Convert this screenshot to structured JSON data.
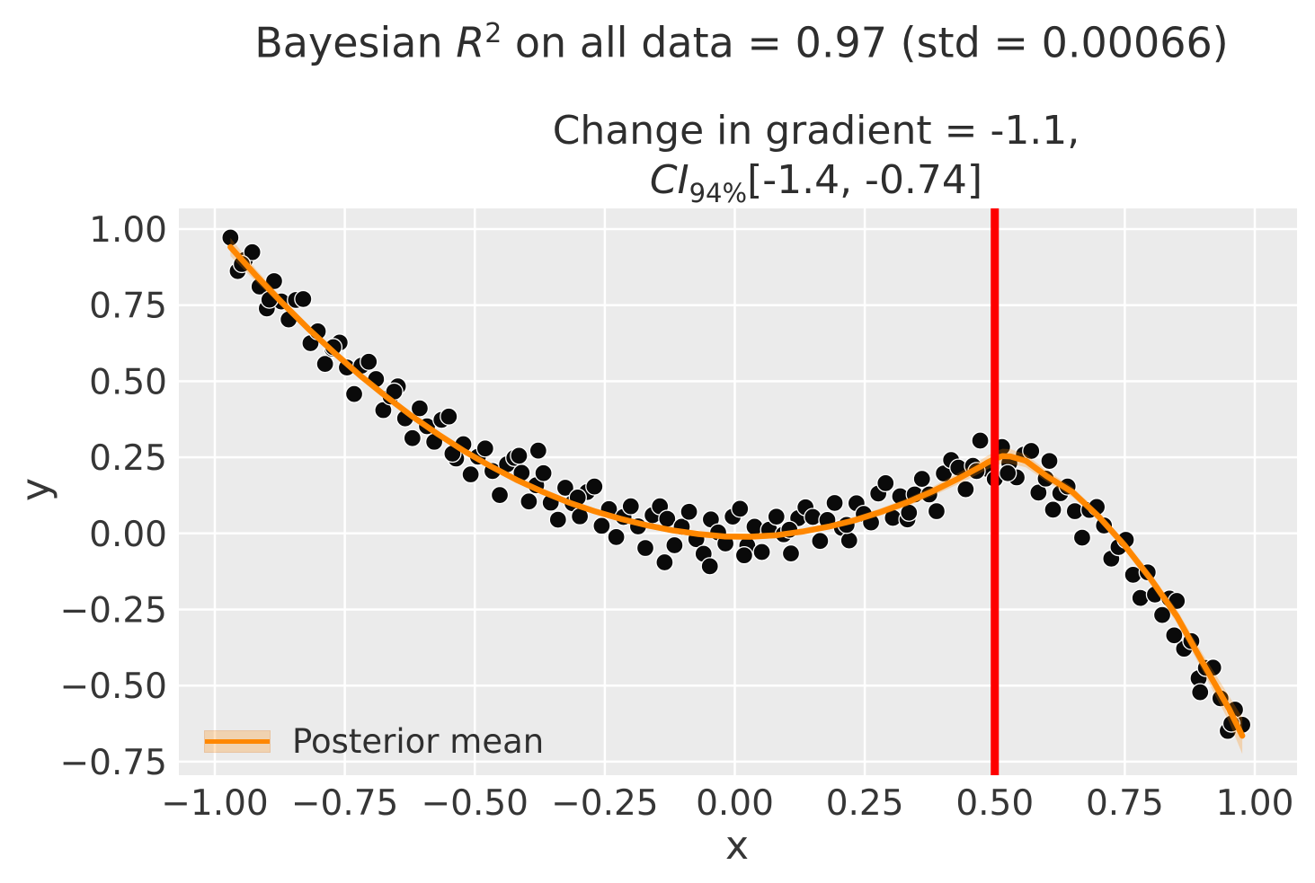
{
  "figure": {
    "title": {
      "prefix": "Bayesian ",
      "var": "R",
      "sup": "2",
      "suffix": " on all data = 0.97 (std = 0.00066)"
    },
    "subtitle": {
      "line1": "Change in gradient = -1.1,",
      "ci_var": "CI",
      "ci_sub": "94%",
      "ci_rest": "[-1.4, -0.74]"
    }
  },
  "chart_data": {
    "type": "scatter",
    "title": "Bayesian R^2 on all data = 0.97 (std = 0.00066)",
    "subtitle": "Change in gradient = -1.1, CI_94% [-1.4, -0.74]",
    "xlabel": "x",
    "ylabel": "y",
    "xlim": [
      -1.069,
      1.081
    ],
    "ylim": [
      -0.794,
      1.068
    ],
    "grid": true,
    "background": "#ebebeb",
    "gridcolor": "#ffffff",
    "xticks": {
      "values": [
        -1.0,
        -0.75,
        -0.5,
        -0.25,
        0.0,
        0.25,
        0.5,
        0.75,
        1.0
      ],
      "labels": [
        "−1.00",
        "−0.75",
        "−0.50",
        "−0.25",
        "0.00",
        "0.25",
        "0.50",
        "0.75",
        "1.00"
      ]
    },
    "yticks": {
      "values": [
        1.0,
        0.75,
        0.5,
        0.25,
        0.0,
        -0.25,
        -0.5,
        -0.75
      ],
      "labels": [
        "1.00",
        "0.75",
        "0.50",
        "0.25",
        "0.00",
        "−0.25",
        "−0.50",
        "−0.75"
      ]
    },
    "changepoint": {
      "x": 0.5,
      "color": "#fe0000"
    },
    "legend": [
      {
        "label": "Posterior mean",
        "line_color": "#ff8700",
        "band_alpha": 0.25
      }
    ],
    "scatter": {
      "color": "#0a0a0a",
      "edge": "#ffffff",
      "points": [
        [
          -0.97,
          0.972
        ],
        [
          -0.956,
          0.862
        ],
        [
          -0.942,
          0.899
        ],
        [
          -0.928,
          0.924
        ],
        [
          -0.914,
          0.811
        ],
        [
          -0.9,
          0.739
        ],
        [
          -0.886,
          0.829
        ],
        [
          -0.872,
          0.762
        ],
        [
          -0.858,
          0.703
        ],
        [
          -0.844,
          0.767
        ],
        [
          -0.83,
          0.77
        ],
        [
          -0.816,
          0.625
        ],
        [
          -0.802,
          0.664
        ],
        [
          -0.788,
          0.557
        ],
        [
          -0.774,
          0.607
        ],
        [
          -0.76,
          0.627
        ],
        [
          -0.746,
          0.545
        ],
        [
          -0.732,
          0.458
        ],
        [
          -0.718,
          0.551
        ],
        [
          -0.704,
          0.564
        ],
        [
          -0.69,
          0.507
        ],
        [
          -0.676,
          0.405
        ],
        [
          -0.662,
          0.45
        ],
        [
          -0.648,
          0.483
        ],
        [
          -0.634,
          0.378
        ],
        [
          -0.62,
          0.313
        ],
        [
          -0.606,
          0.411
        ],
        [
          -0.592,
          0.352
        ],
        [
          -0.578,
          0.301
        ],
        [
          -0.564,
          0.373
        ],
        [
          -0.55,
          0.384
        ],
        [
          -0.536,
          0.246
        ],
        [
          -0.522,
          0.293
        ],
        [
          -0.508,
          0.194
        ],
        [
          -0.494,
          0.252
        ],
        [
          -0.48,
          0.279
        ],
        [
          -0.466,
          0.205
        ],
        [
          -0.452,
          0.126
        ],
        [
          -0.438,
          0.227
        ],
        [
          -0.424,
          0.248
        ],
        [
          -0.41,
          0.199
        ],
        [
          -0.396,
          0.105
        ],
        [
          -0.382,
          0.158
        ],
        [
          -0.368,
          0.198
        ],
        [
          -0.354,
          0.101
        ],
        [
          -0.34,
          0.045
        ],
        [
          -0.326,
          0.15
        ],
        [
          -0.312,
          0.099
        ],
        [
          -0.298,
          0.056
        ],
        [
          -0.284,
          0.136
        ],
        [
          -0.27,
          0.154
        ],
        [
          -0.256,
          0.025
        ],
        [
          -0.242,
          0.08
        ],
        [
          -0.228,
          -0.012
        ],
        [
          -0.214,
          0.054
        ],
        [
          -0.2,
          0.089
        ],
        [
          -0.186,
          0.023
        ],
        [
          -0.172,
          -0.048
        ],
        [
          -0.158,
          0.06
        ],
        [
          -0.144,
          0.089
        ],
        [
          -0.13,
          0.048
        ],
        [
          -0.116,
          -0.039
        ],
        [
          -0.102,
          0.022
        ],
        [
          -0.088,
          0.071
        ],
        [
          -0.074,
          -0.019
        ],
        [
          -0.06,
          -0.067
        ],
        [
          -0.046,
          0.046
        ],
        [
          -0.032,
          0.003
        ],
        [
          -0.018,
          -0.033
        ],
        [
          -0.004,
          0.055
        ],
        [
          0.01,
          0.081
        ],
        [
          0.024,
          -0.04
        ],
        [
          0.038,
          0.022
        ],
        [
          0.052,
          -0.061
        ],
        [
          0.066,
          0.012
        ],
        [
          0.08,
          0.055
        ],
        [
          0.094,
          -0.003
        ],
        [
          0.108,
          -0.066
        ],
        [
          0.122,
          0.05
        ],
        [
          0.136,
          0.086
        ],
        [
          0.15,
          0.054
        ],
        [
          0.164,
          -0.025
        ],
        [
          0.178,
          0.044
        ],
        [
          0.192,
          0.1
        ],
        [
          0.206,
          0.018
        ],
        [
          0.22,
          -0.023
        ],
        [
          0.234,
          0.099
        ],
        [
          0.248,
          0.064
        ],
        [
          0.262,
          0.036
        ],
        [
          0.276,
          0.131
        ],
        [
          0.29,
          0.165
        ],
        [
          0.304,
          0.051
        ],
        [
          0.318,
          0.122
        ],
        [
          0.332,
          0.046
        ],
        [
          0.346,
          0.128
        ],
        [
          0.36,
          0.179
        ],
        [
          0.374,
          0.128
        ],
        [
          0.388,
          0.073
        ],
        [
          0.402,
          0.197
        ],
        [
          0.416,
          0.241
        ],
        [
          0.43,
          0.216
        ],
        [
          0.444,
          0.145
        ],
        [
          0.458,
          0.222
        ],
        [
          0.472,
          0.305
        ],
        [
          0.486,
          0.212
        ],
        [
          0.5,
          0.179
        ],
        [
          0.514,
          0.284
        ],
        [
          0.528,
          0.231
        ],
        [
          0.542,
          0.184
        ],
        [
          0.556,
          0.259
        ],
        [
          0.57,
          0.271
        ],
        [
          0.584,
          0.134
        ],
        [
          0.598,
          0.18
        ],
        [
          0.612,
          0.078
        ],
        [
          0.626,
          0.132
        ],
        [
          0.64,
          0.154
        ],
        [
          0.654,
          0.073
        ],
        [
          0.668,
          -0.014
        ],
        [
          0.682,
          0.077
        ],
        [
          0.696,
          0.087
        ],
        [
          0.71,
          0.026
        ],
        [
          0.724,
          -0.083
        ],
        [
          0.738,
          -0.045
        ],
        [
          0.752,
          -0.021
        ],
        [
          0.766,
          -0.136
        ],
        [
          0.78,
          -0.212
        ],
        [
          0.794,
          -0.128
        ],
        [
          0.808,
          -0.201
        ],
        [
          0.822,
          -0.268
        ],
        [
          0.836,
          -0.214
        ],
        [
          0.85,
          -0.222
        ],
        [
          0.864,
          -0.379
        ],
        [
          0.878,
          -0.354
        ],
        [
          0.892,
          -0.476
        ],
        [
          0.906,
          -0.442
        ],
        [
          0.92,
          -0.441
        ],
        [
          0.934,
          -0.542
        ],
        [
          0.948,
          -0.649
        ],
        [
          0.962,
          -0.579
        ],
        [
          0.976,
          -0.629
        ],
        [
          -0.948,
          0.885
        ],
        [
          -0.895,
          0.768
        ],
        [
          -0.772,
          0.612
        ],
        [
          -0.655,
          0.466
        ],
        [
          -0.543,
          0.262
        ],
        [
          -0.415,
          0.255
        ],
        [
          -0.378,
          0.272
        ],
        [
          -0.302,
          0.118
        ],
        [
          -0.135,
          -0.095
        ],
        [
          -0.048,
          -0.108
        ],
        [
          0.018,
          -0.072
        ],
        [
          0.105,
          0.012
        ],
        [
          0.215,
          0.028
        ],
        [
          0.335,
          0.068
        ],
        [
          0.465,
          0.205
        ],
        [
          0.525,
          0.198
        ],
        [
          0.605,
          0.238
        ],
        [
          0.845,
          -0.335
        ],
        [
          0.895,
          -0.522
        ],
        [
          0.955,
          -0.625
        ]
      ]
    },
    "posterior_mean": {
      "color": "#ff8700",
      "band_alpha": 0.25,
      "points": [
        [
          -0.97,
          0.941,
          0.03
        ],
        [
          -0.92,
          0.846,
          0.02
        ],
        [
          -0.87,
          0.757,
          0.015
        ],
        [
          -0.82,
          0.672,
          0.013
        ],
        [
          -0.77,
          0.593,
          0.012
        ],
        [
          -0.72,
          0.518,
          0.011
        ],
        [
          -0.67,
          0.449,
          0.011
        ],
        [
          -0.62,
          0.384,
          0.01
        ],
        [
          -0.57,
          0.325,
          0.01
        ],
        [
          -0.52,
          0.27,
          0.01
        ],
        [
          -0.47,
          0.221,
          0.01
        ],
        [
          -0.42,
          0.176,
          0.01
        ],
        [
          -0.37,
          0.137,
          0.01
        ],
        [
          -0.32,
          0.102,
          0.01
        ],
        [
          -0.27,
          0.073,
          0.01
        ],
        [
          -0.22,
          0.048,
          0.01
        ],
        [
          -0.17,
          0.027,
          0.01
        ],
        [
          -0.12,
          0.01,
          0.01
        ],
        [
          -0.07,
          -0.002,
          0.01
        ],
        [
          -0.02,
          -0.01,
          0.01
        ],
        [
          0.03,
          -0.011,
          0.01
        ],
        [
          0.08,
          -0.006,
          0.01
        ],
        [
          0.13,
          0.006,
          0.01
        ],
        [
          0.18,
          0.022,
          0.01
        ],
        [
          0.23,
          0.043,
          0.011
        ],
        [
          0.28,
          0.07,
          0.012
        ],
        [
          0.33,
          0.101,
          0.013
        ],
        [
          0.38,
          0.138,
          0.015
        ],
        [
          0.43,
          0.18,
          0.018
        ],
        [
          0.47,
          0.217,
          0.021
        ],
        [
          0.485,
          0.232,
          0.022
        ],
        [
          0.5,
          0.245,
          0.024
        ],
        [
          0.515,
          0.254,
          0.024
        ],
        [
          0.53,
          0.253,
          0.024
        ],
        [
          0.56,
          0.238,
          0.021
        ],
        [
          0.6,
          0.188,
          0.018
        ],
        [
          0.65,
          0.135,
          0.016
        ],
        [
          0.7,
          0.055,
          0.015
        ],
        [
          0.75,
          -0.04,
          0.016
        ],
        [
          0.8,
          -0.15,
          0.018
        ],
        [
          0.85,
          -0.272,
          0.022
        ],
        [
          0.9,
          -0.425,
          0.028
        ],
        [
          0.95,
          -0.575,
          0.042
        ],
        [
          0.976,
          -0.665,
          0.06
        ]
      ]
    }
  }
}
